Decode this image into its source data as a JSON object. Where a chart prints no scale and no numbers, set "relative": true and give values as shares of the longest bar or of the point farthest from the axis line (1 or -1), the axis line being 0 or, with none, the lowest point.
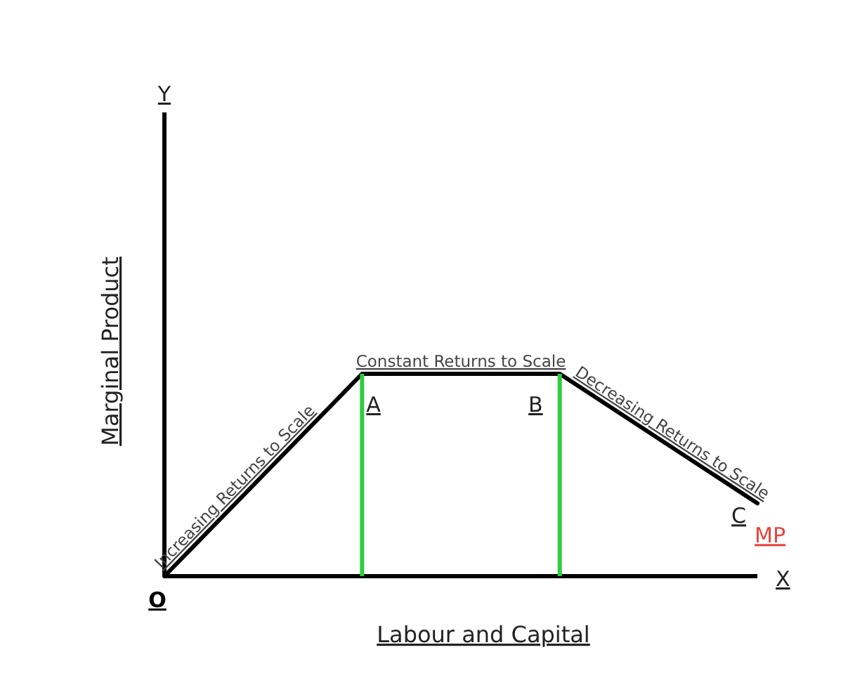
{
  "chart_data": {
    "type": "line",
    "xlabel": "Labour and Capital",
    "ylabel": "Marginal Product",
    "categories": [
      null,
      null,
      null,
      null
    ],
    "relative": true,
    "series": [
      {
        "name": "MP",
        "color": "#000000",
        "values": [
          0,
          1,
          1,
          0.36
        ]
      }
    ],
    "annotations": [
      "Y",
      "X",
      "O",
      "Increasing Returns to Scale",
      "Constant Returns to Scale",
      "Decreasing Returns to Scale",
      "A",
      "B",
      "C"
    ]
  }
}
